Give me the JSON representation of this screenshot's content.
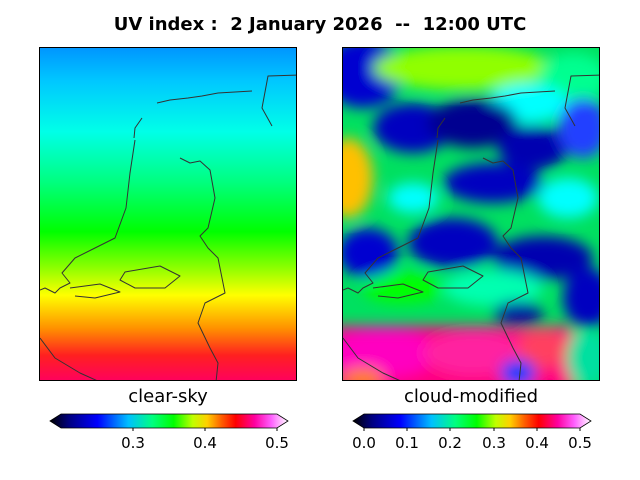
{
  "header": {
    "title": "UV index :  2 January 2026  --  12:00 UTC"
  },
  "panels": [
    {
      "id": "clear-sky",
      "label": "clear-sky"
    },
    {
      "id": "cloud-modified",
      "label": "cloud-modified"
    }
  ],
  "colorbars": {
    "clear_sky": {
      "min": 0.2,
      "max": 0.5,
      "ticks": [
        "0.3",
        "0.4",
        "0.5"
      ],
      "tick_values": [
        0.3,
        0.4,
        0.5
      ]
    },
    "cloud_modified": {
      "min": 0.0,
      "max": 0.5,
      "ticks": [
        "0.0",
        "0.1",
        "0.2",
        "0.3",
        "0.4",
        "0.5"
      ],
      "tick_values": [
        0.0,
        0.1,
        0.2,
        0.3,
        0.4,
        0.5
      ]
    }
  },
  "colors": {
    "border": "#000000",
    "coastline": "#333333"
  }
}
